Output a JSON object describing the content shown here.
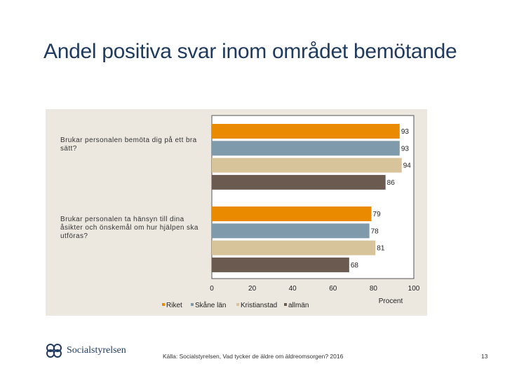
{
  "slide": {
    "title": "Andel positiva svar inom området bemötande",
    "source": "Källa: Socialstyrelsen, Vad tycker de äldre om äldreomsorgen? 2016",
    "page_number": "13",
    "logo_text": "Socialstyrelsen"
  },
  "chart_data": {
    "type": "bar",
    "orientation": "horizontal",
    "categories": [
      "Brukar personalen bemöta dig på ett bra sätt?",
      "Brukar personalen ta hänsyn till dina åsikter och önskemål om hur hjälpen ska utföras?"
    ],
    "series": [
      {
        "name": "Riket",
        "color": "#ea8a00",
        "values": [
          93,
          79
        ]
      },
      {
        "name": "Skåne län",
        "color": "#7f9aab",
        "values": [
          93,
          78
        ]
      },
      {
        "name": "Kristianstad",
        "color": "#d8c49a",
        "values": [
          94,
          81
        ]
      },
      {
        "name": "allmän",
        "color": "#6a5a50",
        "values": [
          86,
          68
        ]
      }
    ],
    "xlabel": "Procent",
    "xlim": [
      0,
      100
    ],
    "xticks": [
      0,
      20,
      40,
      60,
      80,
      100
    ],
    "legend_position": "bottom",
    "grid": false
  }
}
